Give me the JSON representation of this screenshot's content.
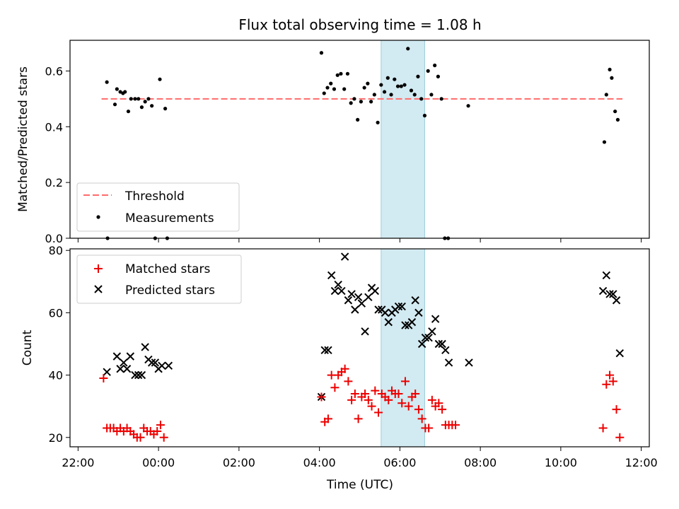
{
  "title": "Flux total observing time = 1.08 h",
  "colors": {
    "threshold": "#ff6b6b",
    "measurement": "#000000",
    "matched": "#ee0000",
    "predicted": "#000000",
    "span_fill": "#add8e6"
  },
  "chart_data": [
    {
      "type": "scatter",
      "title": "Flux total observing time = 1.08 h",
      "xlabel": "",
      "ylabel": "Matched/Predicted stars",
      "ylim": [
        0,
        0.71
      ],
      "yticks": [
        "0.0",
        "0.2",
        "0.4",
        "0.6"
      ],
      "x_range_hours": [
        -2.2,
        12.2
      ],
      "highlight_span": {
        "start": "05:32",
        "end": "06:37"
      },
      "legend_position": "lower-left",
      "series": [
        {
          "name": "Threshold",
          "style": "dashed-line",
          "x": [
            "22:35",
            "11:32"
          ],
          "y": [
            0.5,
            0.5
          ]
        },
        {
          "name": "Measurements",
          "style": "dot",
          "x": [
            "22:43",
            "22:44",
            "22:55",
            "22:58",
            "23:03",
            "23:07",
            "23:10",
            "23:15",
            "23:19",
            "23:25",
            "23:30",
            "23:35",
            "23:40",
            "23:45",
            "23:50",
            "23:55",
            "00:02",
            "00:10",
            "00:13",
            "04:03",
            "04:07",
            "04:12",
            "04:17",
            "04:22",
            "04:27",
            "04:32",
            "04:37",
            "04:42",
            "04:47",
            "04:52",
            "04:57",
            "05:02",
            "05:07",
            "05:12",
            "05:17",
            "05:22",
            "05:27",
            "05:32",
            "05:37",
            "05:42",
            "05:47",
            "05:52",
            "05:57",
            "06:02",
            "06:07",
            "06:12",
            "06:17",
            "06:22",
            "06:27",
            "06:32",
            "06:37",
            "06:42",
            "06:47",
            "06:52",
            "06:57",
            "07:02",
            "07:07",
            "07:12",
            "07:42",
            "11:05",
            "11:08",
            "11:13",
            "11:16",
            "11:21",
            "11:25"
          ],
          "y": [
            0.56,
            0.0,
            0.48,
            0.535,
            0.525,
            0.52,
            0.525,
            0.455,
            0.5,
            0.5,
            0.5,
            0.47,
            0.49,
            0.5,
            0.475,
            0.0,
            0.57,
            0.465,
            0.0,
            0.665,
            0.52,
            0.54,
            0.555,
            0.535,
            0.585,
            0.59,
            0.535,
            0.59,
            0.485,
            0.5,
            0.425,
            0.49,
            0.54,
            0.555,
            0.49,
            0.515,
            0.415,
            0.55,
            0.525,
            0.575,
            0.515,
            0.57,
            0.545,
            0.545,
            0.55,
            0.68,
            0.53,
            0.515,
            0.58,
            0.5,
            0.44,
            0.6,
            0.515,
            0.62,
            0.58,
            0.5,
            0.0,
            0.0,
            0.475,
            0.345,
            0.515,
            0.605,
            0.575,
            0.455,
            0.425
          ]
        }
      ]
    },
    {
      "type": "scatter",
      "xlabel": "Time (UTC)",
      "ylabel": "Count",
      "ylim": [
        17,
        80.5
      ],
      "yticks": [
        "20",
        "40",
        "60",
        "80"
      ],
      "x_range_hours": [
        -2.2,
        12.2
      ],
      "xticks": [
        "22:00",
        "00:00",
        "02:00",
        "04:00",
        "06:00",
        "08:00",
        "10:00",
        "12:00"
      ],
      "highlight_span": {
        "start": "05:32",
        "end": "06:37"
      },
      "legend_position": "upper-left",
      "series": [
        {
          "name": "Matched stars",
          "style": "plus",
          "x": [
            "22:38",
            "22:43",
            "22:48",
            "22:53",
            "22:58",
            "23:03",
            "23:08",
            "23:13",
            "23:18",
            "23:23",
            "23:28",
            "23:33",
            "23:38",
            "23:43",
            "23:48",
            "23:53",
            "23:58",
            "00:03",
            "00:08",
            "04:03",
            "04:08",
            "04:13",
            "04:18",
            "04:23",
            "04:28",
            "04:33",
            "04:38",
            "04:43",
            "04:48",
            "04:53",
            "04:58",
            "05:03",
            "05:08",
            "05:13",
            "05:18",
            "05:23",
            "05:28",
            "05:33",
            "05:38",
            "05:43",
            "05:48",
            "05:53",
            "05:58",
            "06:03",
            "06:08",
            "06:13",
            "06:18",
            "06:23",
            "06:28",
            "06:33",
            "06:38",
            "06:43",
            "06:48",
            "06:53",
            "06:58",
            "07:03",
            "07:08",
            "07:13",
            "07:18",
            "07:23",
            "11:03",
            "11:08",
            "11:13",
            "11:18",
            "11:23",
            "11:28"
          ],
          "y": [
            39,
            23,
            23,
            23,
            22,
            23,
            22,
            23,
            22,
            21,
            20,
            20,
            23,
            22,
            22,
            21,
            22,
            24,
            20,
            33,
            25,
            26,
            40,
            36,
            40,
            41,
            42,
            38,
            32,
            34,
            26,
            33,
            34,
            32,
            30,
            35,
            28,
            34,
            33,
            32,
            35,
            34,
            34,
            31,
            38,
            30,
            33,
            34,
            29,
            26,
            23,
            23,
            32,
            30,
            31,
            29,
            24,
            24,
            24,
            24,
            23,
            37,
            40,
            38,
            29,
            20
          ]
        },
        {
          "name": "Predicted stars",
          "style": "x",
          "x": [
            "22:43",
            "22:58",
            "23:03",
            "23:08",
            "23:13",
            "23:18",
            "23:25",
            "23:30",
            "23:35",
            "23:40",
            "23:45",
            "23:50",
            "23:55",
            "00:00",
            "00:05",
            "00:15",
            "04:03",
            "04:08",
            "04:13",
            "04:18",
            "04:23",
            "04:28",
            "04:33",
            "04:38",
            "04:43",
            "04:48",
            "04:53",
            "04:58",
            "05:03",
            "05:08",
            "05:13",
            "05:18",
            "05:23",
            "05:28",
            "05:33",
            "05:38",
            "05:43",
            "05:48",
            "05:53",
            "05:58",
            "06:03",
            "06:08",
            "06:13",
            "06:18",
            "06:23",
            "06:28",
            "06:33",
            "06:38",
            "06:43",
            "06:48",
            "06:53",
            "06:58",
            "07:03",
            "07:08",
            "07:13",
            "07:43",
            "11:03",
            "11:08",
            "11:13",
            "11:18",
            "11:23",
            "11:28"
          ],
          "y": [
            41,
            46,
            42,
            44,
            42,
            46,
            40,
            40,
            40,
            49,
            45,
            44,
            44,
            42,
            43,
            43,
            33,
            48,
            48,
            72,
            67,
            69,
            67,
            78,
            64,
            66,
            61,
            65,
            63,
            54,
            65,
            68,
            67,
            61,
            61,
            60,
            57,
            60,
            61,
            62,
            62,
            56,
            56,
            57,
            64,
            60,
            50,
            52,
            52,
            54,
            58,
            50,
            50,
            48,
            44,
            44,
            67,
            72,
            66,
            66,
            64,
            47
          ]
        }
      ]
    }
  ]
}
